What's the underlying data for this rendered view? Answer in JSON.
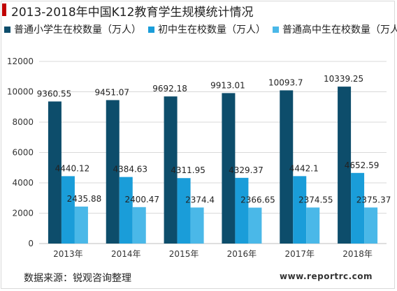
{
  "chart_data": {
    "type": "bar",
    "title": "2013-2018年中国K12教育学生规模统计情况",
    "categories": [
      "2013年",
      "2014年",
      "2015年",
      "2016年",
      "2017年",
      "2018年"
    ],
    "series": [
      {
        "name": "普通小学生在校数量（万人）",
        "values": [
          9360.55,
          9451.07,
          9692.18,
          9913.01,
          10093.7,
          10339.25
        ],
        "labels": [
          "9360.55",
          "9451.07",
          "9692.18",
          "9913.01",
          "10093.7",
          "10339.25"
        ],
        "color": "#0d4d6b"
      },
      {
        "name": "初中生在校数量（万人）",
        "values": [
          4440.12,
          4384.63,
          4311.95,
          4329.37,
          4442.1,
          4652.59
        ],
        "labels": [
          "4440.12",
          "4384.63",
          "4311.95",
          "4329.37",
          "4442.1",
          "4652.59"
        ],
        "color": "#1a9dd9"
      },
      {
        "name": "普通高中生在校数量（万人）",
        "values": [
          2435.88,
          2400.47,
          2374.4,
          2366.65,
          2374.55,
          2375.37
        ],
        "labels": [
          "2435.88",
          "2400.47",
          "2374.4",
          "2366.65",
          "2374.55",
          "2375.37"
        ],
        "color": "#4ab8e8"
      }
    ],
    "ylim": [
      0,
      12000
    ],
    "yticks": [
      "0",
      "2000",
      "4000",
      "6000",
      "8000",
      "10000",
      "12000"
    ],
    "grid": true,
    "legend": "top-left"
  },
  "source": "数据来源：锐观咨询整理",
  "watermark": "www.reportrc.com"
}
